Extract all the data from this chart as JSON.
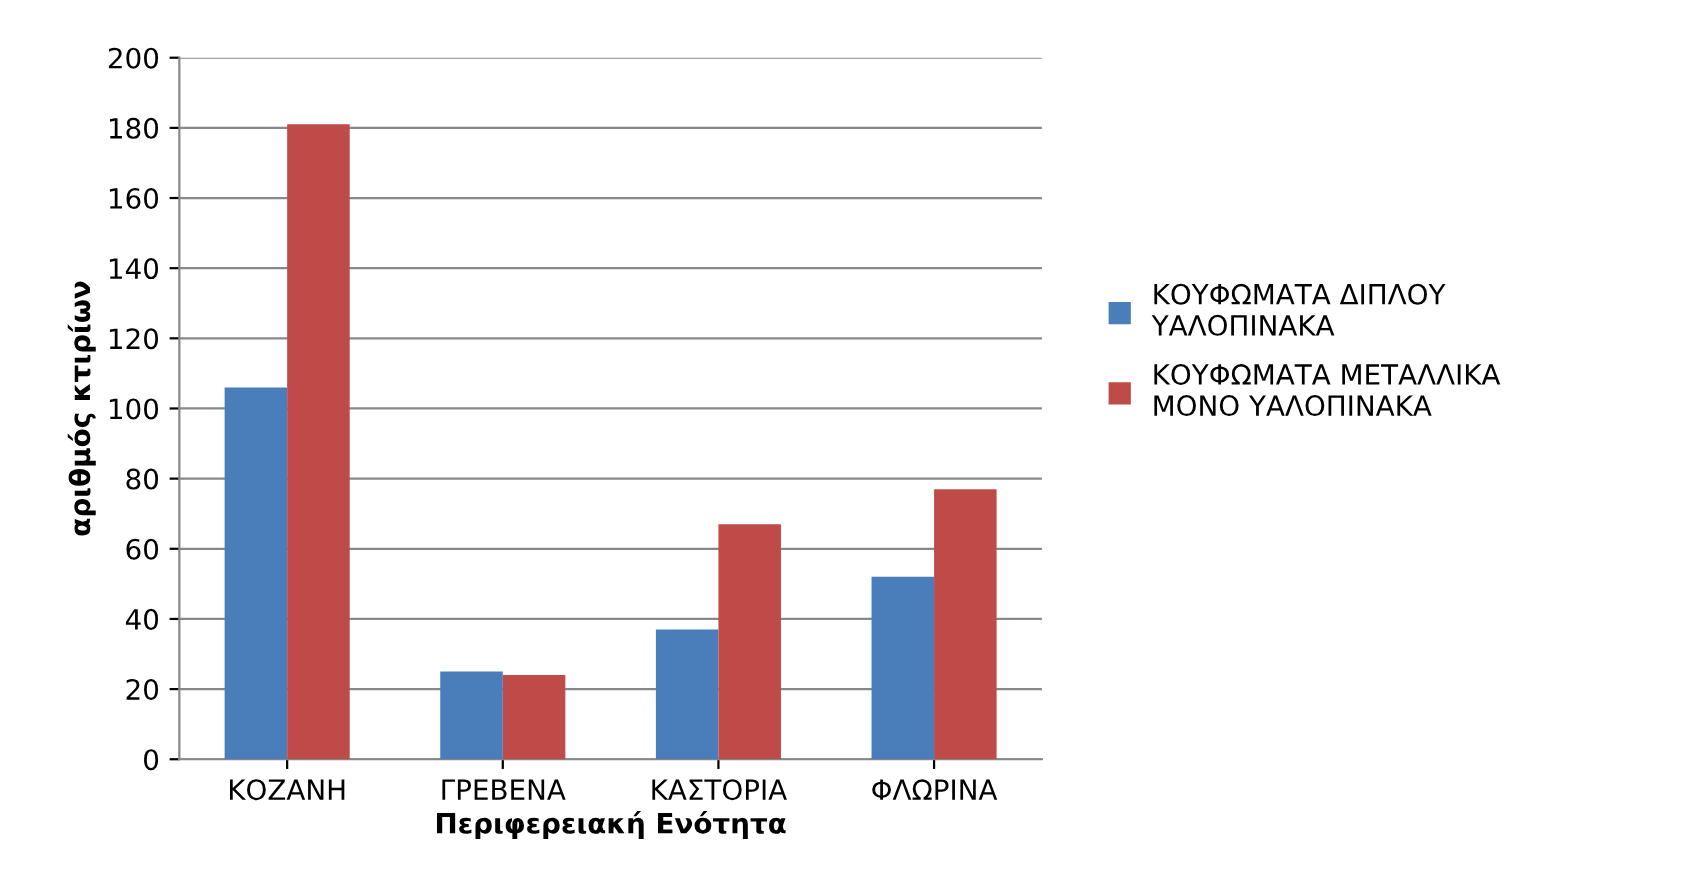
{
  "chart_data": {
    "type": "bar",
    "xlabel": "Περιφερειακή Ενότητα",
    "ylabel": "αριθμός κτιρίων",
    "categories": [
      "ΚΟΖΑΝΗ",
      "ΓΡΕΒΕΝΑ",
      "ΚΑΣΤΟΡΙΑ",
      "ΦΛΩΡΙΝΑ"
    ],
    "series": [
      {
        "name": "ΚΟΥΦΩΜΑΤΑ ΔΙΠΛΟΥ\nΥΑΛΟΠΙΝΑΚΑ",
        "color": "#4a7ebb",
        "values": [
          106,
          25,
          37,
          52
        ]
      },
      {
        "name": "ΚΟΥΦΩΜΑΤΑ ΜΕΤΑΛΛΙΚΑ\nΜΟΝΟ ΥΑΛΟΠΙΝΑΚΑ",
        "color": "#be4b48",
        "values": [
          181,
          24,
          67,
          77
        ]
      }
    ],
    "ylim": [
      0,
      200
    ],
    "yticks": [
      0,
      20,
      40,
      60,
      80,
      100,
      120,
      140,
      160,
      180,
      200
    ],
    "grid": "y",
    "legend": "right"
  }
}
